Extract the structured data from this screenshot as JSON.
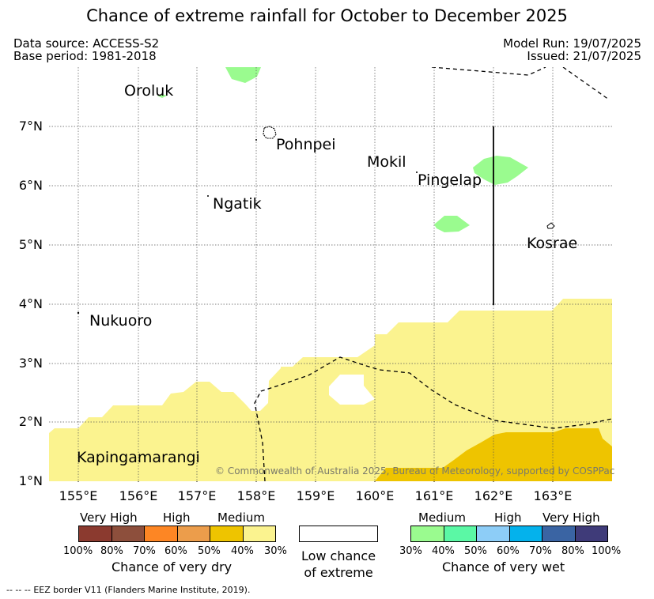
{
  "title": "Chance of extreme rainfall for October to December 2025",
  "meta": {
    "data_source": "Data source: ACCESS-S2",
    "base_period": "Base period: 1981-2018",
    "model_run": "Model Run: 19/07/2025",
    "issued": "Issued: 21/07/2025"
  },
  "map": {
    "lat_labels": [
      "7°N",
      "6°N",
      "5°N",
      "4°N",
      "3°N",
      "2°N",
      "1°N"
    ],
    "lon_labels": [
      "155°E",
      "156°E",
      "157°E",
      "158°E",
      "159°E",
      "160°E",
      "161°E",
      "162°E",
      "163°E"
    ],
    "places": {
      "oroluk": "Oroluk",
      "pohnpei": "Pohnpei",
      "mokil": "Mokil",
      "pingelap": "Pingelap",
      "ngatik": "Ngatik",
      "kosrae": "Kosrae",
      "nukuoro": "Nukuoro",
      "kapingamarangi": "Kapingamarangi"
    },
    "copyright": "© Commonwealth of Australia 2025, Bureau of Meteorology, supported by COSPPac"
  },
  "legend": {
    "dry": {
      "levels": [
        "Very High",
        "High",
        "Medium"
      ],
      "colors": [
        "#8b3a2f",
        "#8d4f3c",
        "#fd8624",
        "#ec9d4b",
        "#eec400",
        "#fbf38f"
      ],
      "ticks": [
        "100%",
        "80%",
        "70%",
        "60%",
        "50%",
        "40%",
        "30%"
      ],
      "caption": "Chance of very dry"
    },
    "low": {
      "caption_line1": "Low chance",
      "caption_line2": "of extreme"
    },
    "wet": {
      "levels": [
        "Medium",
        "High",
        "Very High"
      ],
      "colors": [
        "#9afb8f",
        "#5bf8a5",
        "#8dcdf7",
        "#04b2ec",
        "#3a64a3",
        "#3f3b79"
      ],
      "ticks": [
        "30%",
        "40%",
        "50%",
        "60%",
        "70%",
        "80%",
        "100%"
      ],
      "caption": "Chance of very wet"
    }
  },
  "footer": {
    "eez_symbol": "-- -- --",
    "eez_note": "EEZ border V11 (Flanders Marine Institute, 2019)."
  }
}
